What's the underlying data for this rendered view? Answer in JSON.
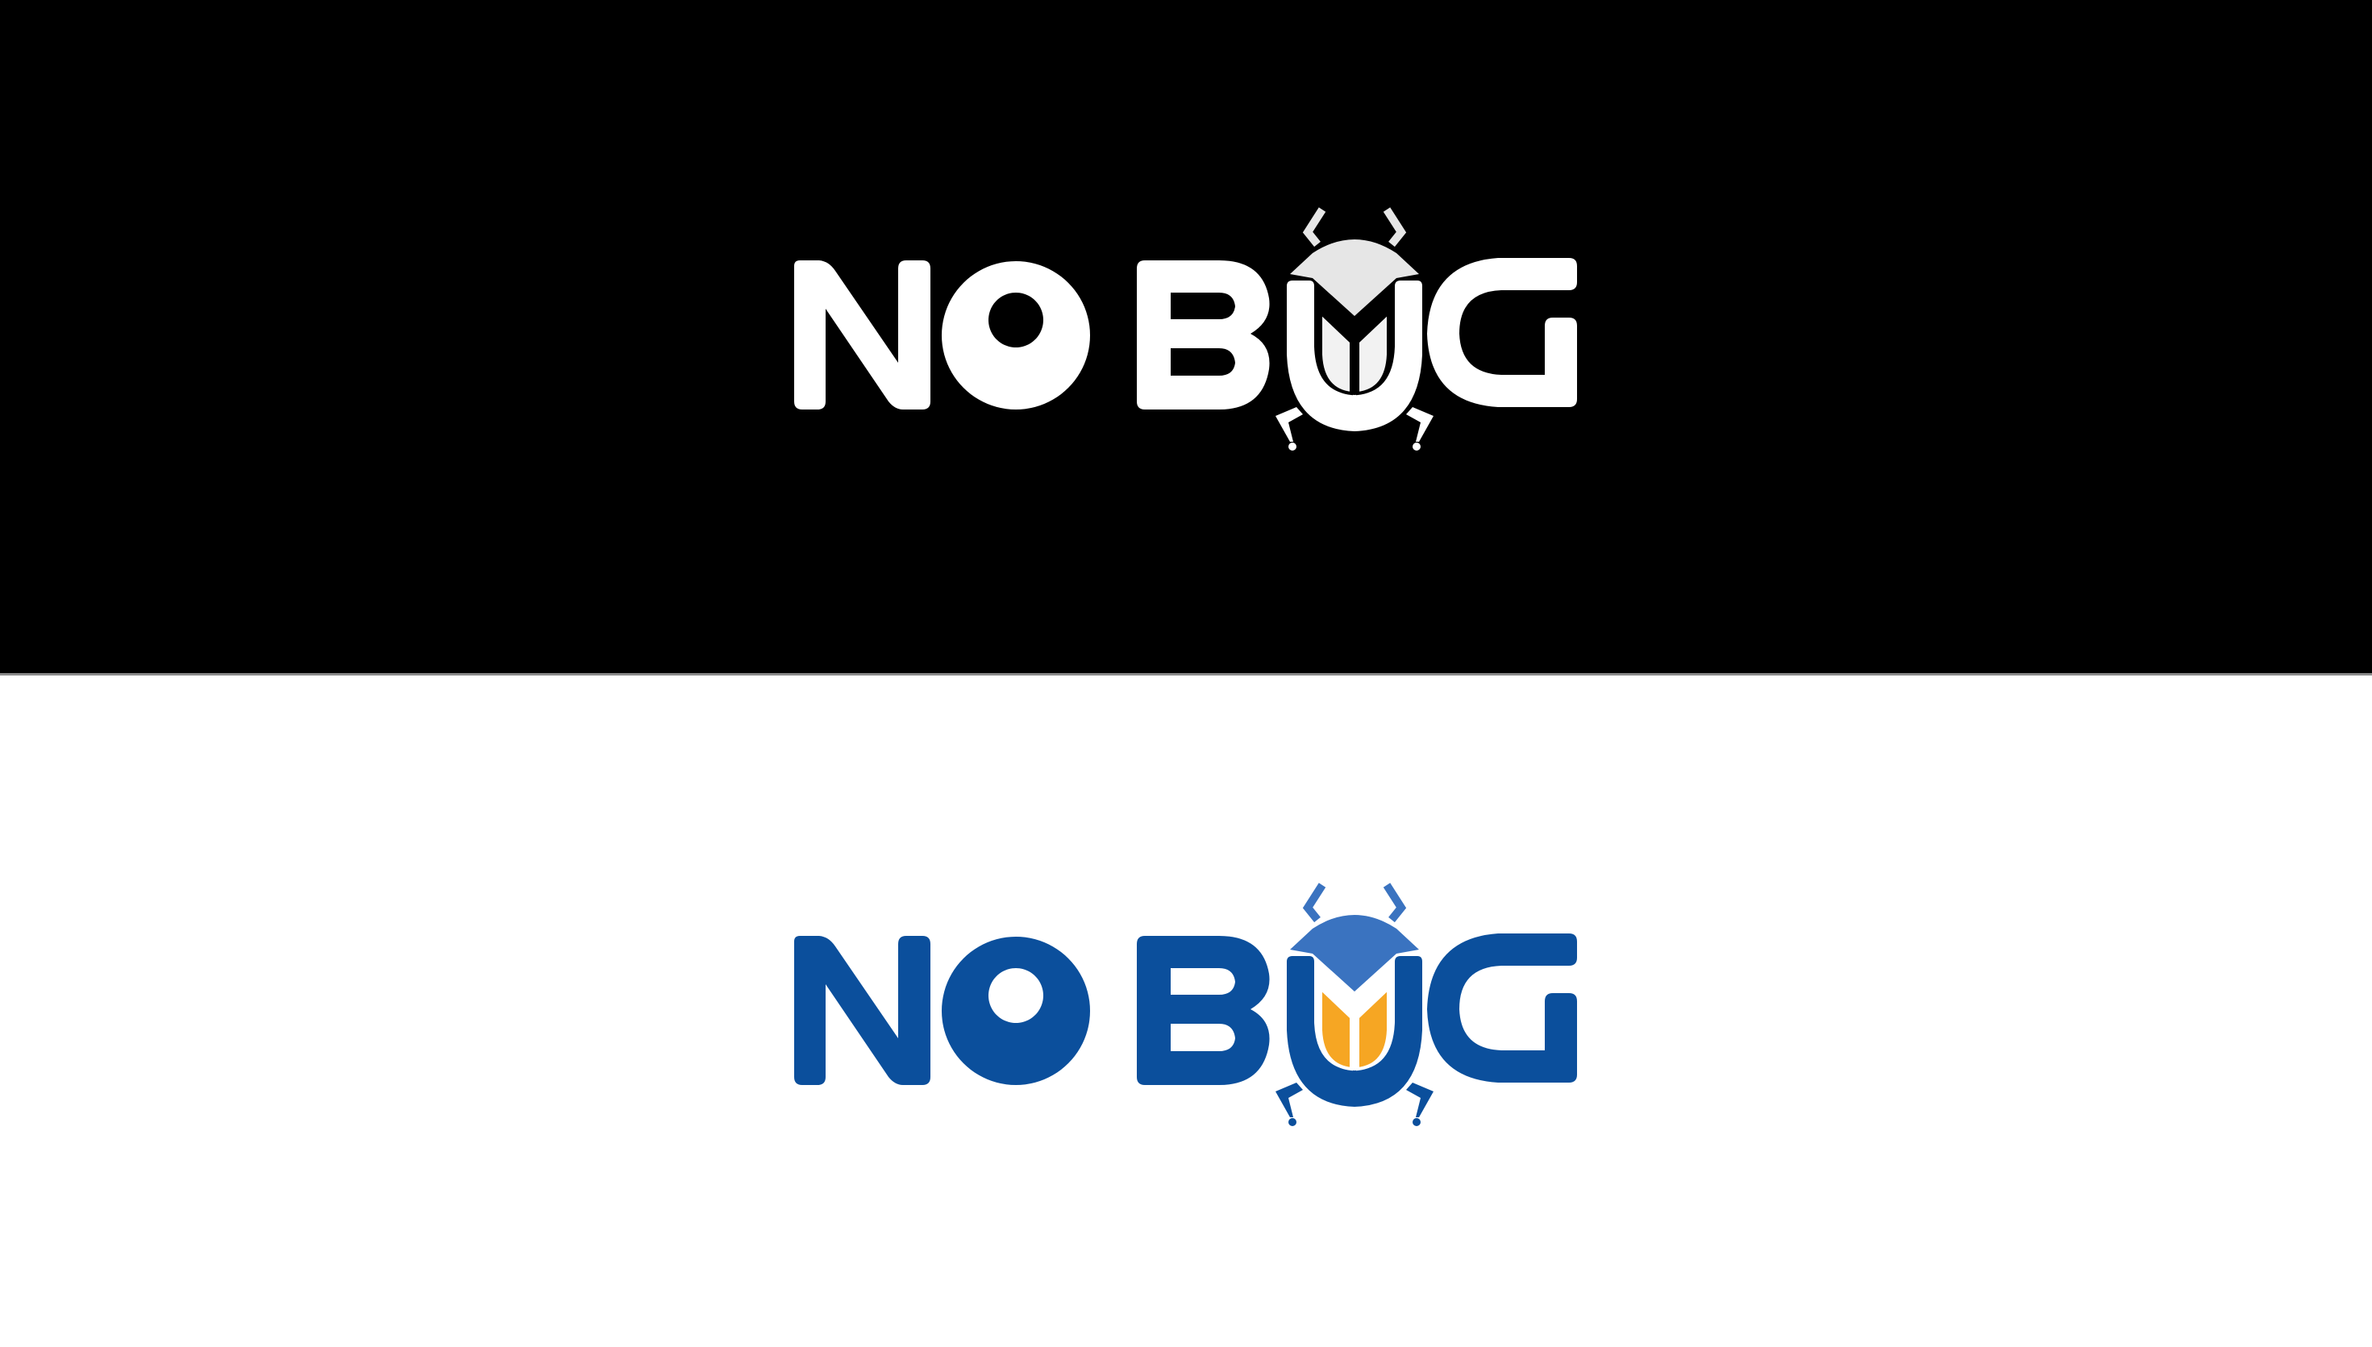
{
  "logo_text": "NO BUG",
  "variants": [
    {
      "name": "dark",
      "background": "#000000",
      "letter_color": "#ffffff",
      "head_color": "#e6e6e6",
      "antenna_color": "#e6e6e6",
      "wing_color": "#f2f2f2",
      "wing_line_color": "#000000",
      "leg_color": "#ffffff"
    },
    {
      "name": "light",
      "background": "#ffffff",
      "letter_color": "#0b4f9c",
      "head_color": "#3a73c0",
      "antenna_color": "#3a73c0",
      "wing_color": "#f6a623",
      "wing_line_color": "#ffffff",
      "leg_color": "#0b4f9c"
    }
  ]
}
